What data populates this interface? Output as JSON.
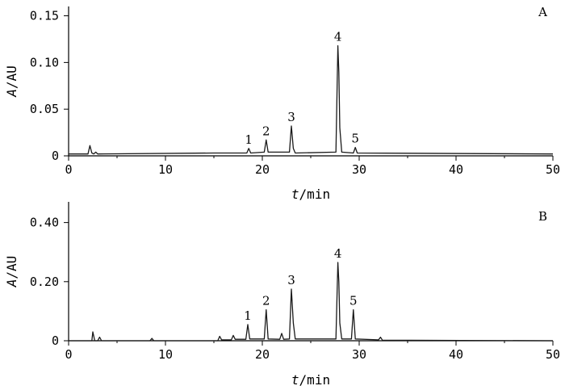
{
  "chart_data": [
    {
      "type": "line",
      "panel_label": "A",
      "xlabel_italic": "t",
      "xlabel_rest": "/min",
      "ylabel_italic": "A",
      "ylabel_rest": "/AU",
      "xlim": [
        0,
        50
      ],
      "ylim": [
        0,
        0.16
      ],
      "xticks": [
        0,
        10,
        20,
        30,
        40,
        50
      ],
      "xtick_labels": [
        "0",
        "10",
        "20",
        "30",
        "40",
        "50"
      ],
      "yticks": [
        0,
        0.05,
        0.1,
        0.15
      ],
      "ytick_labels": [
        "0",
        "0.05",
        "0.10",
        "0.15"
      ],
      "grid": false,
      "baseline": 0.002,
      "series": [
        {
          "x": [
            0,
            2.0,
            2.2,
            2.4,
            2.6,
            2.8,
            3.0,
            15.0,
            18.4,
            18.6,
            18.8,
            20.2,
            20.4,
            20.6,
            22.8,
            23.0,
            23.2,
            23.4,
            27.6,
            27.8,
            27.9,
            28.0,
            28.2,
            29.4,
            29.6,
            29.8,
            50
          ],
          "y": [
            0.002,
            0.002,
            0.011,
            0.003,
            0.002,
            0.004,
            0.002,
            0.003,
            0.003,
            0.008,
            0.003,
            0.004,
            0.017,
            0.004,
            0.004,
            0.032,
            0.008,
            0.003,
            0.004,
            0.118,
            0.09,
            0.03,
            0.004,
            0.003,
            0.009,
            0.003,
            0.002
          ]
        }
      ],
      "peaks": [
        {
          "label": "1",
          "x": 18.6,
          "y": 0.008
        },
        {
          "label": "2",
          "x": 20.4,
          "y": 0.017
        },
        {
          "label": "3",
          "x": 23.0,
          "y": 0.032
        },
        {
          "label": "4",
          "x": 27.8,
          "y": 0.118
        },
        {
          "label": "5",
          "x": 29.6,
          "y": 0.009
        }
      ]
    },
    {
      "type": "line",
      "panel_label": "B",
      "xlabel_italic": "t",
      "xlabel_rest": "/min",
      "ylabel_italic": "A",
      "ylabel_rest": "/AU",
      "xlim": [
        0,
        50
      ],
      "ylim": [
        0,
        0.47
      ],
      "xticks": [
        0,
        10,
        20,
        30,
        40,
        50
      ],
      "xtick_labels": [
        "0",
        "10",
        "20",
        "30",
        "40",
        "50"
      ],
      "yticks": [
        0,
        0.2,
        0.4
      ],
      "ytick_labels": [
        "0",
        "0.20",
        "0.40"
      ],
      "grid": false,
      "baseline": 0.0,
      "series": [
        {
          "x": [
            0,
            2.4,
            2.5,
            2.7,
            3.0,
            3.2,
            3.4,
            8.4,
            8.6,
            8.8,
            15.4,
            15.6,
            15.8,
            16.8,
            17.0,
            17.2,
            18.3,
            18.5,
            18.7,
            20.2,
            20.4,
            20.6,
            21.8,
            22.0,
            22.2,
            22.8,
            23.0,
            23.2,
            23.4,
            27.6,
            27.8,
            27.9,
            28.0,
            28.2,
            29.2,
            29.4,
            29.6,
            32.0,
            32.2,
            32.4,
            50
          ],
          "y": [
            0.0,
            0.0,
            0.03,
            0.0,
            0.0,
            0.012,
            0.0,
            0.0,
            0.008,
            0.0,
            0.0,
            0.015,
            0.003,
            0.003,
            0.018,
            0.005,
            0.005,
            0.055,
            0.006,
            0.006,
            0.105,
            0.006,
            0.005,
            0.025,
            0.005,
            0.006,
            0.175,
            0.06,
            0.006,
            0.006,
            0.265,
            0.2,
            0.06,
            0.006,
            0.006,
            0.105,
            0.006,
            0.003,
            0.012,
            0.002,
            0.0
          ]
        }
      ],
      "peaks": [
        {
          "label": "1",
          "x": 18.5,
          "y": 0.055
        },
        {
          "label": "2",
          "x": 20.4,
          "y": 0.105
        },
        {
          "label": "3",
          "x": 23.0,
          "y": 0.175
        },
        {
          "label": "4",
          "x": 27.8,
          "y": 0.265
        },
        {
          "label": "5",
          "x": 29.4,
          "y": 0.105
        }
      ]
    }
  ]
}
